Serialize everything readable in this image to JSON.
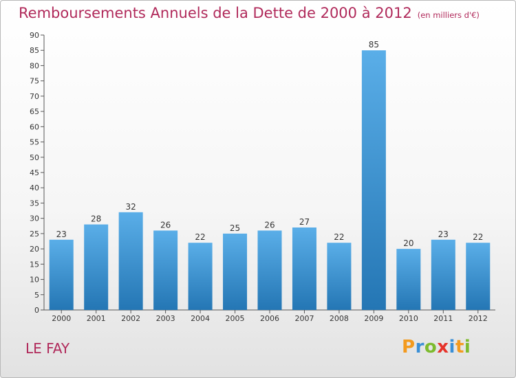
{
  "header": {
    "title": "Remboursements Annuels de la Dette de 2000 à 2012",
    "subtitle": "(en milliers d'€)"
  },
  "place": "LE FAY",
  "brand": {
    "name": "Proxiti",
    "letters": [
      {
        "char": "P",
        "color": "#f39a1e"
      },
      {
        "char": "r",
        "color": "#3a8fd6"
      },
      {
        "char": "o",
        "color": "#7dbb2e"
      },
      {
        "char": "x",
        "color": "#e6332a"
      },
      {
        "char": "i",
        "color": "#3a8fd6"
      },
      {
        "char": "t",
        "color": "#f39a1e"
      },
      {
        "char": "i",
        "color": "#7dbb2e"
      }
    ]
  },
  "colors": {
    "title": "#b0295a",
    "bar_top": "#5aaee8",
    "bar_bottom": "#2476b4",
    "axis": "#555555",
    "tick_label": "#333333"
  },
  "chart_data": {
    "type": "bar",
    "title": "Remboursements Annuels de la Dette de 2000 à 2012",
    "subtitle": "(en milliers d'€)",
    "categories": [
      "2000",
      "2001",
      "2002",
      "2003",
      "2004",
      "2005",
      "2006",
      "2007",
      "2008",
      "2009",
      "2010",
      "2011",
      "2012"
    ],
    "values": [
      23,
      28,
      32,
      26,
      22,
      25,
      26,
      27,
      22,
      85,
      20,
      23,
      22
    ],
    "ylim": [
      0,
      90
    ],
    "yticks": [
      0,
      5,
      10,
      15,
      20,
      25,
      30,
      35,
      40,
      45,
      50,
      55,
      60,
      65,
      70,
      75,
      80,
      85,
      90
    ],
    "grid": false,
    "data_labels": true
  }
}
